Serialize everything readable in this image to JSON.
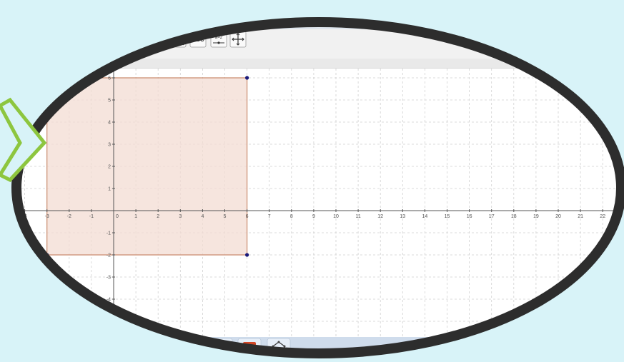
{
  "toolbar": {
    "tools": [
      {
        "name": "circle-tool-icon"
      },
      {
        "name": "angle-tool-icon",
        "glyph": "α"
      },
      {
        "name": "reflect-tool-icon"
      },
      {
        "name": "text-tool-icon",
        "label": "ABC"
      },
      {
        "name": "slider-tool-icon",
        "label": "a=2"
      },
      {
        "name": "move-view-tool-icon"
      }
    ]
  },
  "graph": {
    "x_axis": {
      "min": -4,
      "max": 22,
      "step": 1
    },
    "y_axis": {
      "min": -4,
      "max": 6,
      "step": 1
    },
    "grid": true,
    "polygon": {
      "vertices": [
        [
          -3,
          6
        ],
        [
          6,
          6
        ],
        [
          6,
          -2
        ],
        [
          -3,
          -2
        ]
      ],
      "fill": "#f3dcd3",
      "stroke": "#c98a6e",
      "point_color": "#1a1a7a"
    }
  },
  "taskbar": {
    "items": [
      {
        "name": "skype-taskbar-icon"
      },
      {
        "name": "powerpoint-taskbar-icon",
        "label": "P"
      },
      {
        "name": "app-taskbar-icon"
      }
    ]
  },
  "frame": {
    "color": "#2d2d2d"
  },
  "arrow": {
    "color": "#8dc63f"
  }
}
